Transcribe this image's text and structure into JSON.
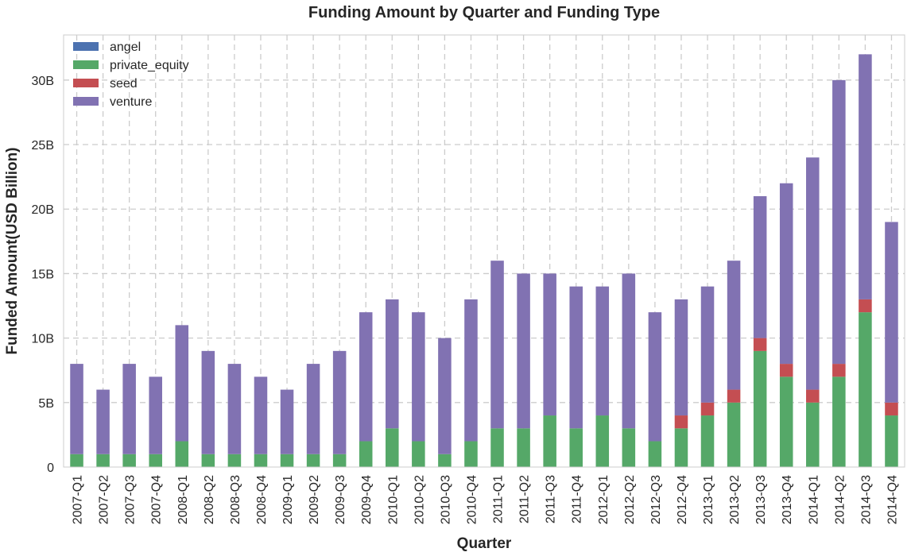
{
  "chart_data": {
    "type": "bar",
    "stacked": true,
    "title": "Funding Amount by Quarter and Funding Type",
    "xlabel": "Quarter",
    "ylabel": "Funded Amount(USD Billion)",
    "ylim": [
      0,
      33.5
    ],
    "yticks": [
      0,
      5,
      10,
      15,
      20,
      25,
      30
    ],
    "ytick_labels": [
      "0",
      "5B",
      "10B",
      "15B",
      "20B",
      "25B",
      "30B"
    ],
    "grid": true,
    "legend_position": "top-left",
    "categories": [
      "2007-Q1",
      "2007-Q2",
      "2007-Q3",
      "2007-Q4",
      "2008-Q1",
      "2008-Q2",
      "2008-Q3",
      "2008-Q4",
      "2009-Q1",
      "2009-Q2",
      "2009-Q3",
      "2009-Q4",
      "2010-Q1",
      "2010-Q2",
      "2010-Q3",
      "2010-Q4",
      "2011-Q1",
      "2011-Q2",
      "2011-Q3",
      "2011-Q4",
      "2012-Q1",
      "2012-Q2",
      "2012-Q3",
      "2012-Q4",
      "2013-Q1",
      "2013-Q2",
      "2013-Q3",
      "2013-Q4",
      "2014-Q1",
      "2014-Q2",
      "2014-Q3",
      "2014-Q4"
    ],
    "series": [
      {
        "name": "angel",
        "color": "#4c72b0",
        "values": [
          0,
          0,
          0,
          0,
          0,
          0,
          0,
          0,
          0,
          0,
          0,
          0,
          0,
          0,
          0,
          0,
          0,
          0,
          0,
          0,
          0,
          0,
          0,
          0,
          0,
          0,
          0,
          0,
          0,
          0,
          0,
          0
        ]
      },
      {
        "name": "private_equity",
        "color": "#55a868",
        "values": [
          1,
          1,
          1,
          1,
          2,
          1,
          1,
          1,
          1,
          1,
          1,
          2,
          3,
          2,
          1,
          2,
          3,
          3,
          4,
          3,
          4,
          3,
          2,
          3,
          4,
          5,
          9,
          7,
          5,
          7,
          12,
          4
        ]
      },
      {
        "name": "seed",
        "color": "#c44e52",
        "values": [
          0,
          0,
          0,
          0,
          0,
          0,
          0,
          0,
          0,
          0,
          0,
          0,
          0,
          0,
          0,
          0,
          0,
          0,
          0,
          0,
          0,
          0,
          0,
          1,
          1,
          1,
          1,
          1,
          1,
          1,
          1,
          1
        ]
      },
      {
        "name": "venture",
        "color": "#8172b2",
        "values": [
          7,
          5,
          7,
          6,
          9,
          8,
          7,
          6,
          5,
          7,
          8,
          10,
          10,
          10,
          9,
          11,
          13,
          12,
          11,
          11,
          10,
          12,
          10,
          9,
          9,
          10,
          11,
          14,
          18,
          22,
          19,
          14
        ]
      }
    ]
  }
}
